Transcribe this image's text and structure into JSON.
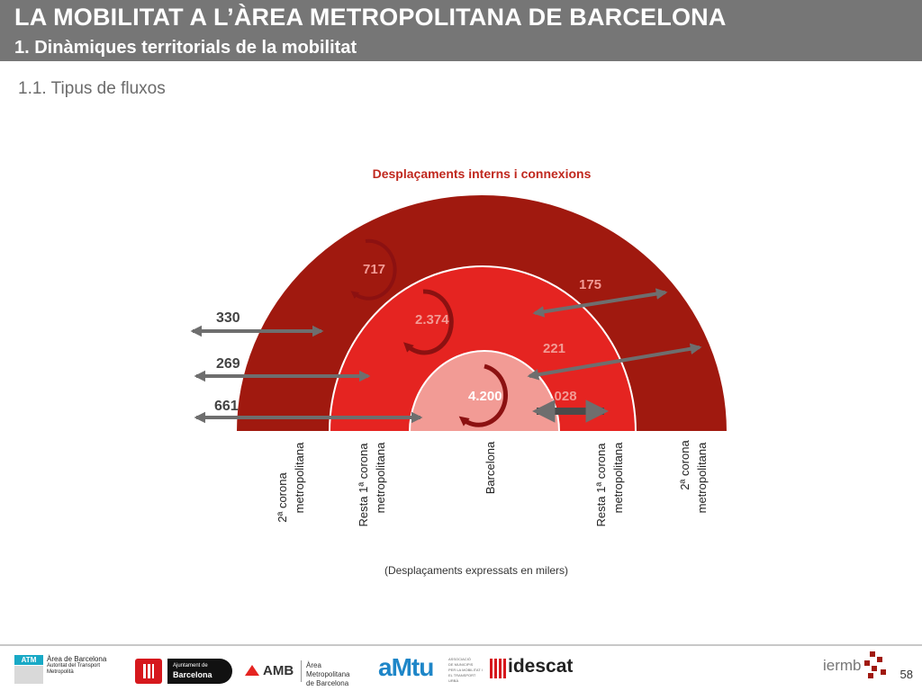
{
  "header": {
    "title": "LA MOBILITAT A L’ÀREA METROPOLITANA DE BARCELONA",
    "subtitle": "1. Dinàmiques territorials de la mobilitat"
  },
  "section": "1.1. Tipus de fluxos",
  "diagram": {
    "title": "Desplaçaments interns i connexions",
    "internal": {
      "corona2": "717",
      "resta1": "2.374",
      "barcelona": "4.200"
    },
    "left_flows": {
      "corona2_out": "330",
      "resta1_out": "269",
      "barcelona_out": "661"
    },
    "right_flows": {
      "corona2": "175",
      "resta1": "221",
      "barcelona_resta1": "1.028"
    },
    "zone_labels": {
      "left_corona2": [
        "2ª corona",
        "metropolitana"
      ],
      "left_resta1": [
        "Resta 1ª corona",
        "metropolitana"
      ],
      "barcelona": [
        "Barcelona"
      ],
      "right_resta1": [
        "Resta 1ª corona",
        "metropolitana"
      ],
      "right_corona2": [
        "2ª corona",
        "metropolitana"
      ]
    },
    "note": "(Desplaçaments expressats en milers)",
    "colors": {
      "outer": "#a0190f",
      "middle": "#e52421",
      "inner": "#f29b95",
      "arrow": "#6e6e6e",
      "cycle": "#8c1111",
      "title": "#c0281e"
    }
  },
  "footer": {
    "logos": {
      "atm_badge": "ATM",
      "atm_lines": [
        "Àrea de Barcelona",
        "Autoritat del Transport",
        "Metropolità"
      ],
      "ajuntament_lines": [
        "Ajuntament de",
        "Barcelona"
      ],
      "amb_mark": "AMB",
      "amb_lines": [
        "Àrea Metropolitana",
        "de Barcelona"
      ],
      "amtu": "aMtu",
      "amtu_lines": [
        "ASSOCIACIÓ",
        "DE MUNICIPIS",
        "PER LA MOBILITAT I",
        "EL TRANSPORT URBÀ"
      ],
      "idescat": "idescat",
      "iermb": "iermb"
    },
    "page_number": "58"
  }
}
